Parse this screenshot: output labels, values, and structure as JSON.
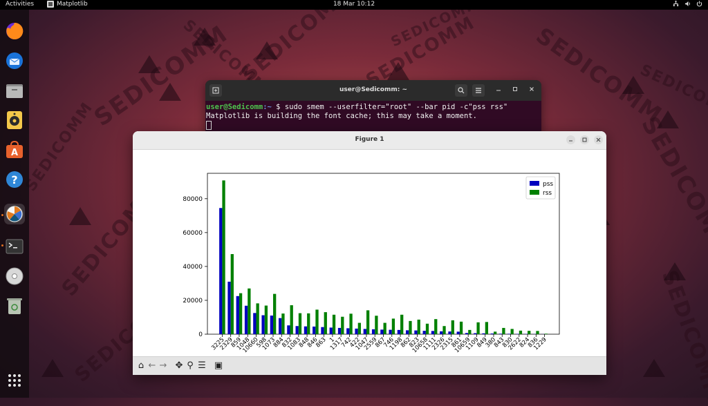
{
  "topbar": {
    "activities": "Activities",
    "app_name": "Matplotlib",
    "clock": "18 Mar  10:12",
    "tray_icons": [
      "network-icon",
      "volume-icon",
      "power-icon"
    ]
  },
  "dock": {
    "items": [
      "firefox-icon",
      "thunderbird-icon",
      "files-icon",
      "rhythmbox-icon",
      "software-icon",
      "help-icon",
      "matplotlib-app-icon",
      "terminal-icon",
      "disc-icon",
      "trash-icon"
    ],
    "apps_grid_icon": "apps-grid-icon"
  },
  "watermark": {
    "text": "SEDICOMM"
  },
  "terminal": {
    "title": "user@Sedicomm: ~",
    "prompt_user": "user@Sedicomm",
    "prompt_path": ":~",
    "command": "$ sudo smem --userfilter=\"root\" --bar pid -c\"pss rss\"",
    "output": "Matplotlib is building the font cache; this may take a moment."
  },
  "figure": {
    "title": "Figure 1"
  },
  "chart_data": {
    "type": "bar",
    "categories": [
      "3225",
      "2329",
      "859",
      "1048",
      "10660",
      "598",
      "1073",
      "884",
      "832",
      "1083",
      "848",
      "846",
      "863",
      "1",
      "1317",
      "742",
      "422",
      "1047",
      "2559",
      "867",
      "746",
      "1198",
      "862",
      "823",
      "10658",
      "1111",
      "2326",
      "2315",
      "861",
      "10659",
      "1109",
      "849",
      "380",
      "843",
      "830",
      "2622",
      "824",
      "836",
      "1229"
    ],
    "series": [
      {
        "name": "pss",
        "color": "#0000bf",
        "values": [
          74500,
          31000,
          22500,
          16800,
          12500,
          11200,
          11000,
          9500,
          5200,
          4800,
          4600,
          4500,
          4200,
          3900,
          3700,
          3500,
          3300,
          3100,
          2900,
          2700,
          2600,
          2500,
          2300,
          2200,
          2000,
          1900,
          1700,
          1600,
          1500,
          700,
          600,
          500,
          400,
          300,
          250,
          200,
          150,
          100,
          50
        ]
      },
      {
        "name": "rss",
        "color": "#008000",
        "values": [
          90800,
          47300,
          24200,
          27000,
          18200,
          16900,
          23800,
          12200,
          17100,
          12400,
          12300,
          14500,
          13000,
          11500,
          10300,
          12100,
          6700,
          14100,
          10900,
          6700,
          9200,
          11500,
          7800,
          8600,
          6200,
          8900,
          4800,
          8200,
          7400,
          2500,
          7000,
          7200,
          1500,
          3700,
          3100,
          2100,
          2000,
          1900,
          300
        ]
      }
    ],
    "yticks": [
      0,
      20000,
      40000,
      60000,
      80000
    ],
    "ylim": [
      0,
      95000
    ],
    "legend": "top-right"
  },
  "toolbar": {
    "home_glyph": "⌂",
    "back_glyph": "←",
    "forward_glyph": "→",
    "pan_glyph": "✥",
    "zoom_glyph": "⚲",
    "config_glyph": "☰",
    "save_glyph": "▣"
  }
}
